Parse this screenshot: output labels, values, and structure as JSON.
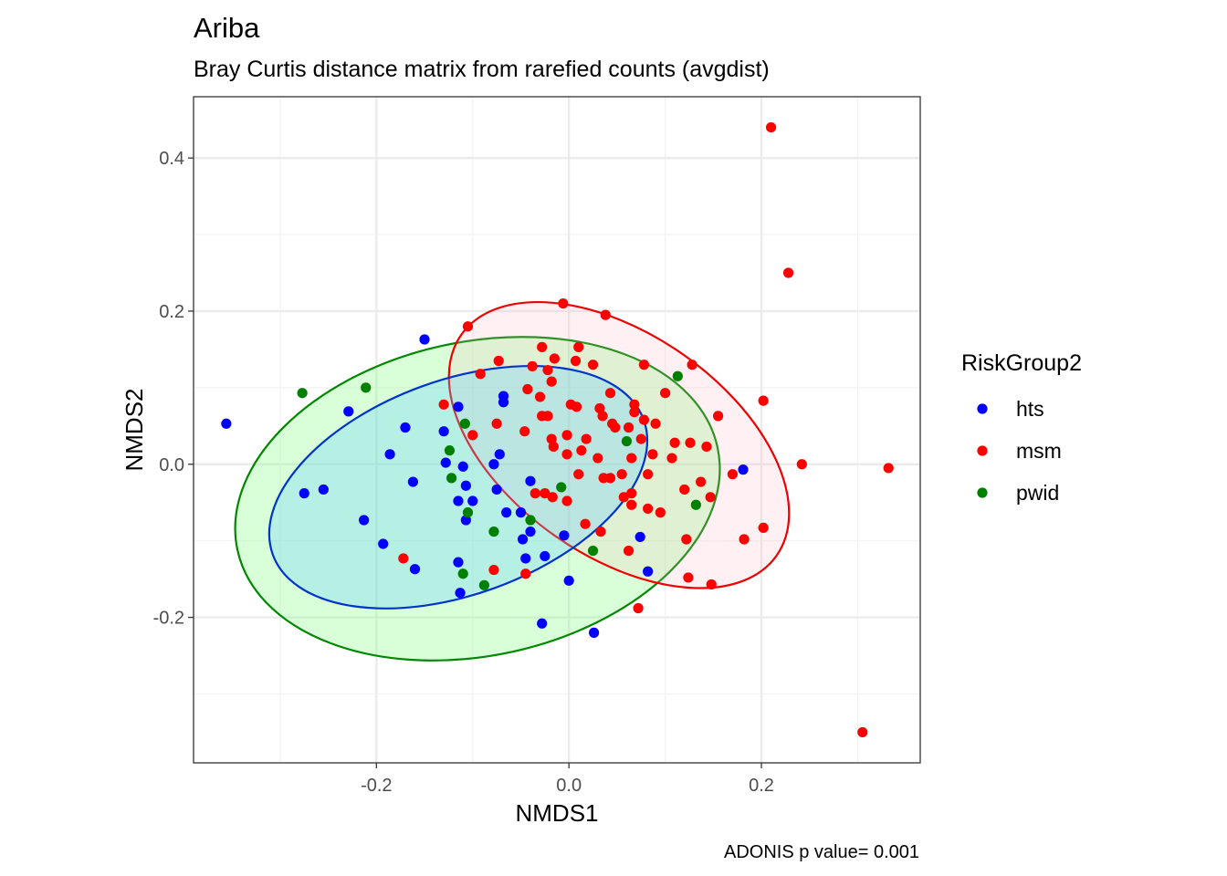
{
  "chart_data": {
    "type": "scatter",
    "title": "Ariba",
    "subtitle": "Bray Curtis distance matrix from rarefied counts (avgdist)",
    "xlabel": "NMDS1",
    "ylabel": "NMDS2",
    "caption": "ADONIS p value= 0.001",
    "xlim": [
      -0.39,
      0.365
    ],
    "ylim": [
      -0.39,
      0.48
    ],
    "xticks": [
      -0.2,
      0.0,
      0.2
    ],
    "xtick_labels": [
      "-0.2",
      "0.0",
      "0.2"
    ],
    "yticks": [
      -0.2,
      0.0,
      0.2,
      0.4
    ],
    "ytick_labels": [
      "-0.2",
      "0.0",
      "0.2",
      "0.4"
    ],
    "grid": true,
    "legend": {
      "title": "RiskGroup2",
      "position": "right"
    },
    "series": [
      {
        "name": "hts",
        "color": "#0000ff",
        "ellipse": {
          "cx": -0.115,
          "cy": -0.03,
          "rx": 0.205,
          "ry": 0.14,
          "angle": -20,
          "stroke": "#0033cc",
          "fill": "#66ccff",
          "fill_opacity": 0.3
        },
        "points": [
          [
            -0.356,
            0.053
          ],
          [
            -0.15,
            0.163
          ],
          [
            -0.229,
            0.069
          ],
          [
            -0.17,
            0.048
          ],
          [
            -0.186,
            0.013
          ],
          [
            -0.162,
            -0.023
          ],
          [
            -0.255,
            -0.033
          ],
          [
            -0.275,
            -0.038
          ],
          [
            -0.213,
            -0.073
          ],
          [
            -0.193,
            -0.104
          ],
          [
            -0.16,
            -0.137
          ],
          [
            -0.115,
            0.075
          ],
          [
            -0.068,
            0.089
          ],
          [
            -0.068,
            0.081
          ],
          [
            -0.13,
            0.043
          ],
          [
            -0.128,
            0.002
          ],
          [
            -0.11,
            -0.003
          ],
          [
            -0.107,
            -0.028
          ],
          [
            -0.072,
            0.013
          ],
          [
            -0.078,
            0.0
          ],
          [
            -0.04,
            -0.022
          ],
          [
            -0.075,
            -0.033
          ],
          [
            -0.115,
            -0.048
          ],
          [
            -0.1,
            -0.048
          ],
          [
            -0.107,
            -0.073
          ],
          [
            -0.065,
            -0.063
          ],
          [
            -0.05,
            -0.063
          ],
          [
            -0.04,
            -0.088
          ],
          [
            -0.048,
            -0.098
          ],
          [
            -0.045,
            -0.123
          ],
          [
            -0.025,
            -0.12
          ],
          [
            -0.115,
            -0.128
          ],
          [
            -0.113,
            -0.168
          ],
          [
            -0.005,
            -0.093
          ],
          [
            -0.028,
            -0.208
          ],
          [
            0.0,
            -0.152
          ],
          [
            0.026,
            -0.22
          ],
          [
            0.074,
            -0.095
          ],
          [
            0.082,
            -0.14
          ],
          [
            0.181,
            -0.007
          ]
        ]
      },
      {
        "name": "msm",
        "color": "#ff0000",
        "ellipse": {
          "cx": 0.052,
          "cy": 0.025,
          "rx": 0.2,
          "ry": 0.145,
          "angle": 35,
          "stroke": "#ee0000",
          "fill": "#ffb6c1",
          "fill_opacity": 0.2
        },
        "points": [
          [
            0.21,
            0.44
          ],
          [
            0.228,
            0.25
          ],
          [
            0.202,
            0.083
          ],
          [
            0.242,
            0.0
          ],
          [
            0.332,
            -0.005
          ],
          [
            0.305,
            -0.35
          ],
          [
            -0.105,
            0.18
          ],
          [
            -0.006,
            0.21
          ],
          [
            0.038,
            0.195
          ],
          [
            -0.028,
            0.153
          ],
          [
            0.01,
            0.153
          ],
          [
            -0.015,
            0.138
          ],
          [
            0.078,
            0.13
          ],
          [
            0.128,
            0.13
          ],
          [
            -0.038,
            0.128
          ],
          [
            0.007,
            0.135
          ],
          [
            0.025,
            0.13
          ],
          [
            -0.022,
            0.123
          ],
          [
            -0.092,
            0.118
          ],
          [
            -0.073,
            0.135
          ],
          [
            -0.13,
            0.078
          ],
          [
            -0.043,
            0.098
          ],
          [
            -0.018,
            0.108
          ],
          [
            0.1,
            0.093
          ],
          [
            0.043,
            0.093
          ],
          [
            -0.03,
            0.088
          ],
          [
            0.002,
            0.078
          ],
          [
            0.008,
            0.075
          ],
          [
            0.032,
            0.073
          ],
          [
            0.068,
            0.078
          ],
          [
            0.155,
            0.063
          ],
          [
            -0.028,
            0.063
          ],
          [
            -0.022,
            0.063
          ],
          [
            0.035,
            0.063
          ],
          [
            0.068,
            0.068
          ],
          [
            -0.075,
            0.053
          ],
          [
            0.045,
            0.053
          ],
          [
            0.048,
            0.048
          ],
          [
            -0.046,
            0.043
          ],
          [
            -0.002,
            0.038
          ],
          [
            0.062,
            0.048
          ],
          [
            0.078,
            0.058
          ],
          [
            0.09,
            0.053
          ],
          [
            -0.1,
            0.038
          ],
          [
            -0.018,
            0.033
          ],
          [
            0.018,
            0.033
          ],
          [
            -0.016,
            0.023
          ],
          [
            0.075,
            0.033
          ],
          [
            0.11,
            0.028
          ],
          [
            0.126,
            0.028
          ],
          [
            0.143,
            0.023
          ],
          [
            -0.002,
            0.013
          ],
          [
            0.013,
            0.018
          ],
          [
            0.03,
            0.008
          ],
          [
            0.065,
            0.008
          ],
          [
            0.087,
            0.013
          ],
          [
            0.107,
            0.008
          ],
          [
            0.17,
            -0.013
          ],
          [
            0.01,
            -0.013
          ],
          [
            0.036,
            -0.018
          ],
          [
            0.043,
            -0.018
          ],
          [
            0.055,
            -0.013
          ],
          [
            0.082,
            -0.013
          ],
          [
            0.137,
            -0.023
          ],
          [
            -0.025,
            -0.038
          ],
          [
            -0.035,
            -0.038
          ],
          [
            -0.017,
            -0.043
          ],
          [
            -0.002,
            -0.048
          ],
          [
            0.065,
            -0.038
          ],
          [
            0.057,
            -0.043
          ],
          [
            0.065,
            -0.053
          ],
          [
            0.082,
            -0.058
          ],
          [
            0.095,
            -0.063
          ],
          [
            0.12,
            -0.033
          ],
          [
            0.147,
            -0.043
          ],
          [
            0.017,
            -0.078
          ],
          [
            0.033,
            -0.088
          ],
          [
            0.202,
            -0.083
          ],
          [
            0.122,
            -0.098
          ],
          [
            0.062,
            -0.113
          ],
          [
            0.182,
            -0.098
          ],
          [
            -0.172,
            -0.123
          ],
          [
            -0.078,
            -0.138
          ],
          [
            -0.045,
            -0.143
          ],
          [
            0.124,
            -0.148
          ],
          [
            0.148,
            -0.157
          ],
          [
            0.072,
            -0.188
          ]
        ]
      },
      {
        "name": "pwid",
        "color": "#008000",
        "ellipse": {
          "cx": -0.095,
          "cy": -0.045,
          "rx": 0.255,
          "ry": 0.205,
          "angle": -12,
          "stroke": "#008800",
          "fill": "#7fff7f",
          "fill_opacity": 0.3
        },
        "points": [
          [
            -0.277,
            0.093
          ],
          [
            -0.211,
            0.1
          ],
          [
            -0.108,
            0.053
          ],
          [
            -0.124,
            0.018
          ],
          [
            -0.122,
            -0.018
          ],
          [
            -0.105,
            -0.063
          ],
          [
            -0.11,
            -0.143
          ],
          [
            -0.088,
            -0.158
          ],
          [
            -0.078,
            -0.088
          ],
          [
            -0.04,
            -0.073
          ],
          [
            -0.008,
            -0.03
          ],
          [
            0.025,
            -0.113
          ],
          [
            0.06,
            0.03
          ],
          [
            0.113,
            0.115
          ],
          [
            0.132,
            -0.053
          ]
        ]
      }
    ]
  }
}
